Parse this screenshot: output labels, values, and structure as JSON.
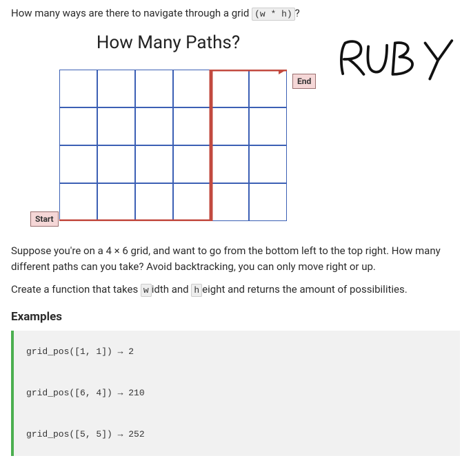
{
  "question_before": "How many ways are there to navigate through a grid ",
  "question_code": "(w * h)",
  "question_after": "?",
  "diagram": {
    "title": "How Many Paths?",
    "start_label": "Start",
    "end_label": "End",
    "grid_cols": 6,
    "grid_rows": 4,
    "cell_size": 55,
    "grid_color": "#3b5fb4",
    "grid_stroke": 2,
    "path_color": "#c24a3f",
    "path_stroke": 5,
    "path_points": [
      [
        0,
        4
      ],
      [
        4,
        4
      ],
      [
        4,
        0
      ],
      [
        6,
        0
      ]
    ],
    "background": "#ffffff"
  },
  "ruby_label": "RUBY",
  "para1": "Suppose you're on a 4 × 6 grid, and want to go from the bottom left to the top right. How many different paths can you take? Avoid backtracking, you can only move right or up.",
  "para2_before": "Create a function that takes ",
  "para2_code1": "w",
  "para2_mid1": "idth and ",
  "para2_code2": "h",
  "para2_mid2": "eight and returns the amount of possibilities.",
  "examples_heading": "Examples",
  "examples": [
    {
      "call": "grid_pos([1, 1])",
      "result": "2"
    },
    {
      "call": "grid_pos([6, 4])",
      "result": "210"
    },
    {
      "call": "grid_pos([5, 5])",
      "result": "252"
    }
  ],
  "arrow": "→"
}
